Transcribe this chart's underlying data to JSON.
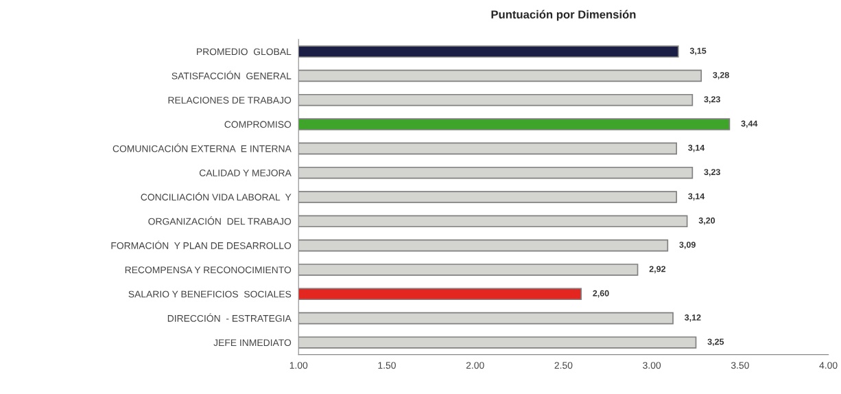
{
  "chart_data": {
    "type": "bar",
    "orientation": "horizontal",
    "title": "Puntuación por Dimensión",
    "categories": [
      "PROMEDIO  GLOBAL",
      "SATISFACCIÓN  GENERAL",
      "RELACIONES DE TRABAJO",
      "COMPROMISO",
      "COMUNICACIÓN EXTERNA  E INTERNA",
      "CALIDAD Y MEJORA",
      "CONCILIACIÓN VIDA LABORAL  Y",
      "ORGANIZACIÓN  DEL TRABAJO",
      "FORMACIÓN  Y PLAN DE DESARROLLO",
      "RECOMPENSA Y RECONOCIMIENTO",
      "SALARIO Y BENEFICIOS  SOCIALES",
      "DIRECCIÓN  - ESTRATEGIA",
      "JEFE INMEDIATO"
    ],
    "values": [
      3.15,
      3.28,
      3.23,
      3.44,
      3.14,
      3.23,
      3.14,
      3.2,
      3.09,
      2.92,
      2.6,
      3.12,
      3.25
    ],
    "value_labels": [
      "3,15",
      "3,28",
      "3,23",
      "3,44",
      "3,14",
      "3,23",
      "3,14",
      "3,20",
      "3,09",
      "2,92",
      "2,60",
      "3,12",
      "3,25"
    ],
    "colors": [
      "#1c1f45",
      "#d4d4d0",
      "#d4d4d0",
      "#3fa52a",
      "#d4d4d0",
      "#d4d4d0",
      "#d4d4d0",
      "#d4d4d0",
      "#d4d4d0",
      "#d4d4d0",
      "#e32620",
      "#d4d4d0",
      "#d4d4d0"
    ],
    "xlim": [
      1.0,
      4.0
    ],
    "xticks": [
      {
        "value": 1.0,
        "label": "1.00"
      },
      {
        "value": 1.5,
        "label": "1.50"
      },
      {
        "value": 2.0,
        "label": "2.00"
      },
      {
        "value": 2.5,
        "label": "2.50"
      },
      {
        "value": 3.0,
        "label": "3.00"
      },
      {
        "value": 3.5,
        "label": "3.50"
      },
      {
        "value": 4.0,
        "label": "4.00"
      }
    ],
    "grid": false,
    "legend": false
  }
}
